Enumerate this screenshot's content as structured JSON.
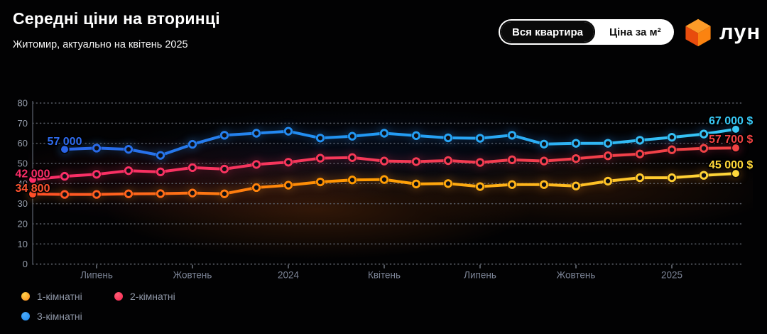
{
  "header": {
    "title": "Середні ціни на вторинці",
    "subtitle": "Житомир, актуально на квітень 2025",
    "toggle": {
      "options": [
        "Вся квартира",
        "Ціна за м²"
      ],
      "active": 0
    },
    "logo_text": "лун"
  },
  "chart_data": {
    "type": "line",
    "title": "Середні ціни на вторинці",
    "subtitle": "Житомир, актуально на квітень 2025",
    "unit": "$",
    "values_in": "thousands of USD",
    "ylim": [
      0,
      80
    ],
    "y_ticks": [
      0,
      10,
      20,
      30,
      40,
      50,
      60,
      70,
      80
    ],
    "grid": "dotted horizontal",
    "x_point_count": 23,
    "x_ticks": [
      {
        "i": 2,
        "label": "Липень"
      },
      {
        "i": 5,
        "label": "Жовтень"
      },
      {
        "i": 8,
        "label": "2024"
      },
      {
        "i": 11,
        "label": "Квітень"
      },
      {
        "i": 14,
        "label": "Липень"
      },
      {
        "i": 17,
        "label": "Жовтень"
      },
      {
        "i": 20,
        "label": "2025"
      }
    ],
    "series": [
      {
        "name": "3-кімнатні",
        "start_label": "57 000",
        "end_label": "67 000 $",
        "start_label_color": "#2f6cf0",
        "end_label_color": "#38c9f6",
        "gradient": [
          [
            "0%",
            "#2b5fe6"
          ],
          [
            "45%",
            "#2196f3"
          ],
          [
            "100%",
            "#38c9f6"
          ]
        ],
        "glow": "rgba(40,140,245,0.45)",
        "values": [
          null,
          57.0,
          57.6,
          57.0,
          54.0,
          59.5,
          64.0,
          65.0,
          66.0,
          62.6,
          63.5,
          65.0,
          63.8,
          62.7,
          62.5,
          64.0,
          59.6,
          60.0,
          60.0,
          61.5,
          63.0,
          64.6,
          67.0
        ]
      },
      {
        "name": "2-кімнатні",
        "start_label": "42 000",
        "end_label": "57 700 $",
        "start_label_color": "#fb2d68",
        "end_label_color": "#f24343",
        "gradient": [
          [
            "0%",
            "#fb2d68"
          ],
          [
            "55%",
            "#f43b55"
          ],
          [
            "100%",
            "#f04343"
          ]
        ],
        "glow": "rgba(245,50,90,0.40)",
        "values": [
          42.0,
          43.6,
          44.6,
          46.4,
          45.8,
          47.9,
          47.2,
          49.5,
          50.6,
          52.6,
          52.9,
          51.2,
          50.9,
          51.4,
          50.5,
          51.8,
          51.2,
          52.4,
          53.8,
          54.7,
          56.8,
          57.5,
          57.7
        ]
      },
      {
        "name": "1-кімнатні",
        "start_label": "34 800",
        "end_label": "45 000 $",
        "start_label_color": "#ff5430",
        "end_label_color": "#ffd83a",
        "gradient": [
          [
            "0%",
            "#ff4f28"
          ],
          [
            "45%",
            "#ff9800"
          ],
          [
            "100%",
            "#ffd93c"
          ]
        ],
        "glow": "rgba(255,150,30,0.40)",
        "values": [
          34.8,
          34.6,
          34.6,
          34.9,
          35.0,
          35.3,
          34.9,
          38.0,
          39.2,
          40.8,
          41.8,
          42.0,
          39.8,
          40.0,
          38.5,
          39.5,
          39.5,
          38.8,
          41.2,
          42.9,
          42.9,
          44.1,
          45.0
        ]
      }
    ]
  },
  "legend": {
    "items": [
      {
        "label": "1-кімнатні",
        "color_a": "#ffd24a",
        "color_b": "#ff8a1c"
      },
      {
        "label": "2-кімнатні",
        "color_a": "#ff5d75",
        "color_b": "#f5234f"
      },
      {
        "label": "3-кімнатні",
        "color_a": "#4aa9f7",
        "color_b": "#1e88f0"
      }
    ]
  }
}
